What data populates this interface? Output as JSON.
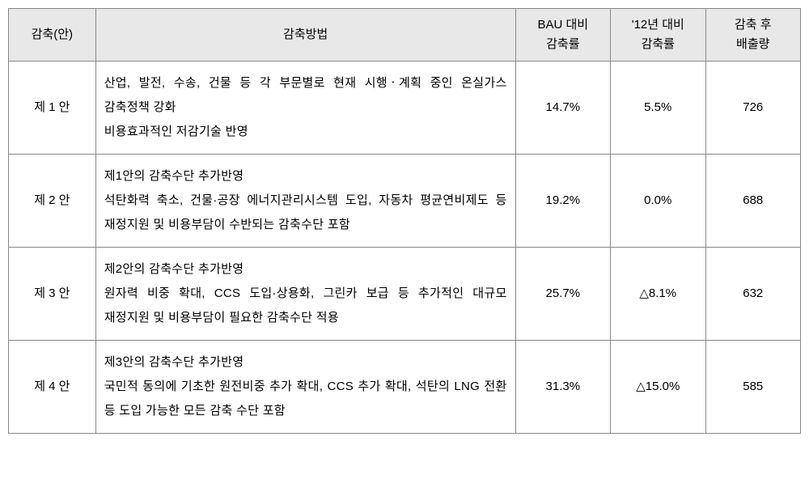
{
  "headers": {
    "plan": "감축(안)",
    "method": "감축방법",
    "bau_line1": "BAU 대비",
    "bau_line2": "감축률",
    "y12_line1": "'12년 대비",
    "y12_line2": "감축률",
    "emit_line1": "감축 후",
    "emit_line2": "배출량"
  },
  "rows": [
    {
      "plan": "제 1 안",
      "method_lines": [
        "산업, 발전, 수송, 건물 등 각 부문별로 현재 시행ㆍ계획 중인 온실가스 감축정책 강화",
        "비용효과적인 저감기술 반영"
      ],
      "bau": "14.7%",
      "y12": "5.5%",
      "emit": "726"
    },
    {
      "plan": "제 2 안",
      "method_lines": [
        "제1안의 감축수단 추가반영",
        "석탄화력 축소, 건물·공장 에너지관리시스템 도입, 자동차 평균연비제도 등 재정지원 및 비용부담이 수반되는 감축수단 포함"
      ],
      "bau": "19.2%",
      "y12": "0.0%",
      "emit": "688"
    },
    {
      "plan": "제 3 안",
      "method_lines": [
        "제2안의 감축수단 추가반영",
        "원자력 비중 확대, CCS 도입·상용화, 그린카 보급 등 추가적인 대규모 재정지원 및 비용부담이 필요한 감축수단 적용"
      ],
      "bau": "25.7%",
      "y12": "△8.1%",
      "emit": "632"
    },
    {
      "plan": "제 4 안",
      "method_lines": [
        "제3안의 감축수단 추가반영",
        "국민적 동의에 기초한 원전비중 추가 확대, CCS 추가 확대, 석탄의 LNG 전환 등 도입 가능한 모든 감축 수단 포함"
      ],
      "bau": "31.3%",
      "y12": "△15.0%",
      "emit": "585"
    }
  ],
  "styles": {
    "header_bg": "#e8e8e8",
    "border_color": "#888888",
    "text_color": "#000000",
    "body_bg": "#ffffff",
    "font_size_header": 15,
    "font_size_cell": 15
  }
}
